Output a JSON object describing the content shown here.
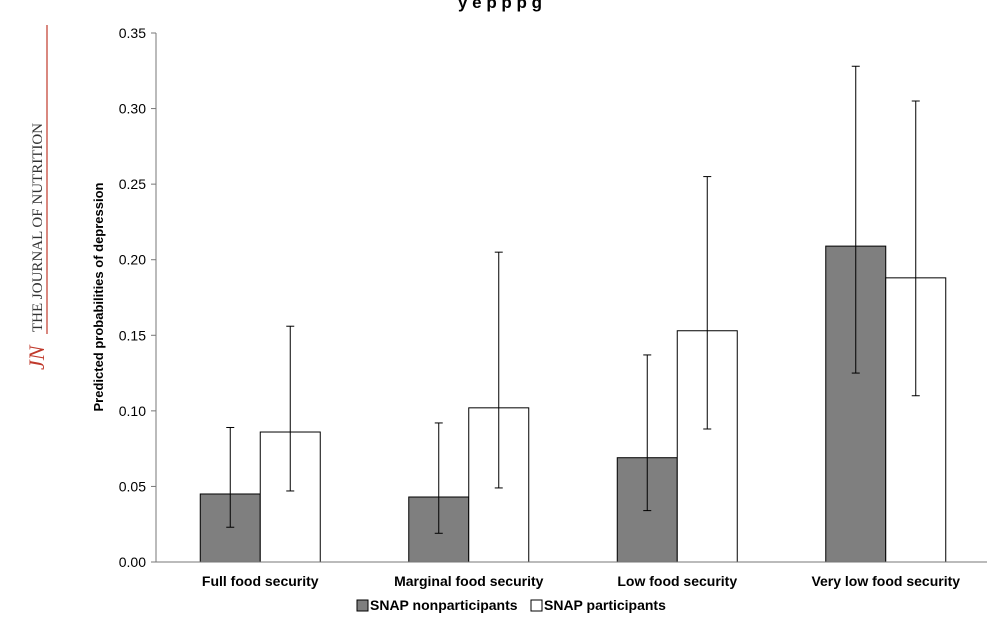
{
  "journal": {
    "mark": "JN",
    "name": "THE JOURNAL OF NUTRITION",
    "accent_color": "#c0392b"
  },
  "chart_data": {
    "type": "bar",
    "title": "y    e p  p  p      g",
    "xlabel": "",
    "ylabel": "Predicted probabilities of depression",
    "ylim": [
      0,
      0.35
    ],
    "yticks": [
      "0.00",
      "0.05",
      "0.10",
      "0.15",
      "0.20",
      "0.25",
      "0.30",
      "0.35"
    ],
    "ytick_values": [
      0,
      0.05,
      0.1,
      0.15,
      0.2,
      0.25,
      0.3,
      0.35
    ],
    "grid": false,
    "legend_position": "bottom",
    "categories": [
      "Full food security",
      "Marginal food security",
      "Low food security",
      "Very low food security"
    ],
    "series": [
      {
        "name": "SNAP nonparticipants",
        "color": "#7f7f7f",
        "values": [
          0.045,
          0.043,
          0.069,
          0.209
        ],
        "err_low": [
          0.023,
          0.019,
          0.034,
          0.125
        ],
        "err_high": [
          0.089,
          0.092,
          0.137,
          0.328
        ]
      },
      {
        "name": "SNAP participants",
        "color": "#ffffff",
        "values": [
          0.086,
          0.102,
          0.153,
          0.188
        ],
        "err_low": [
          0.047,
          0.049,
          0.088,
          0.11
        ],
        "err_high": [
          0.156,
          0.205,
          0.255,
          0.305
        ]
      }
    ]
  }
}
